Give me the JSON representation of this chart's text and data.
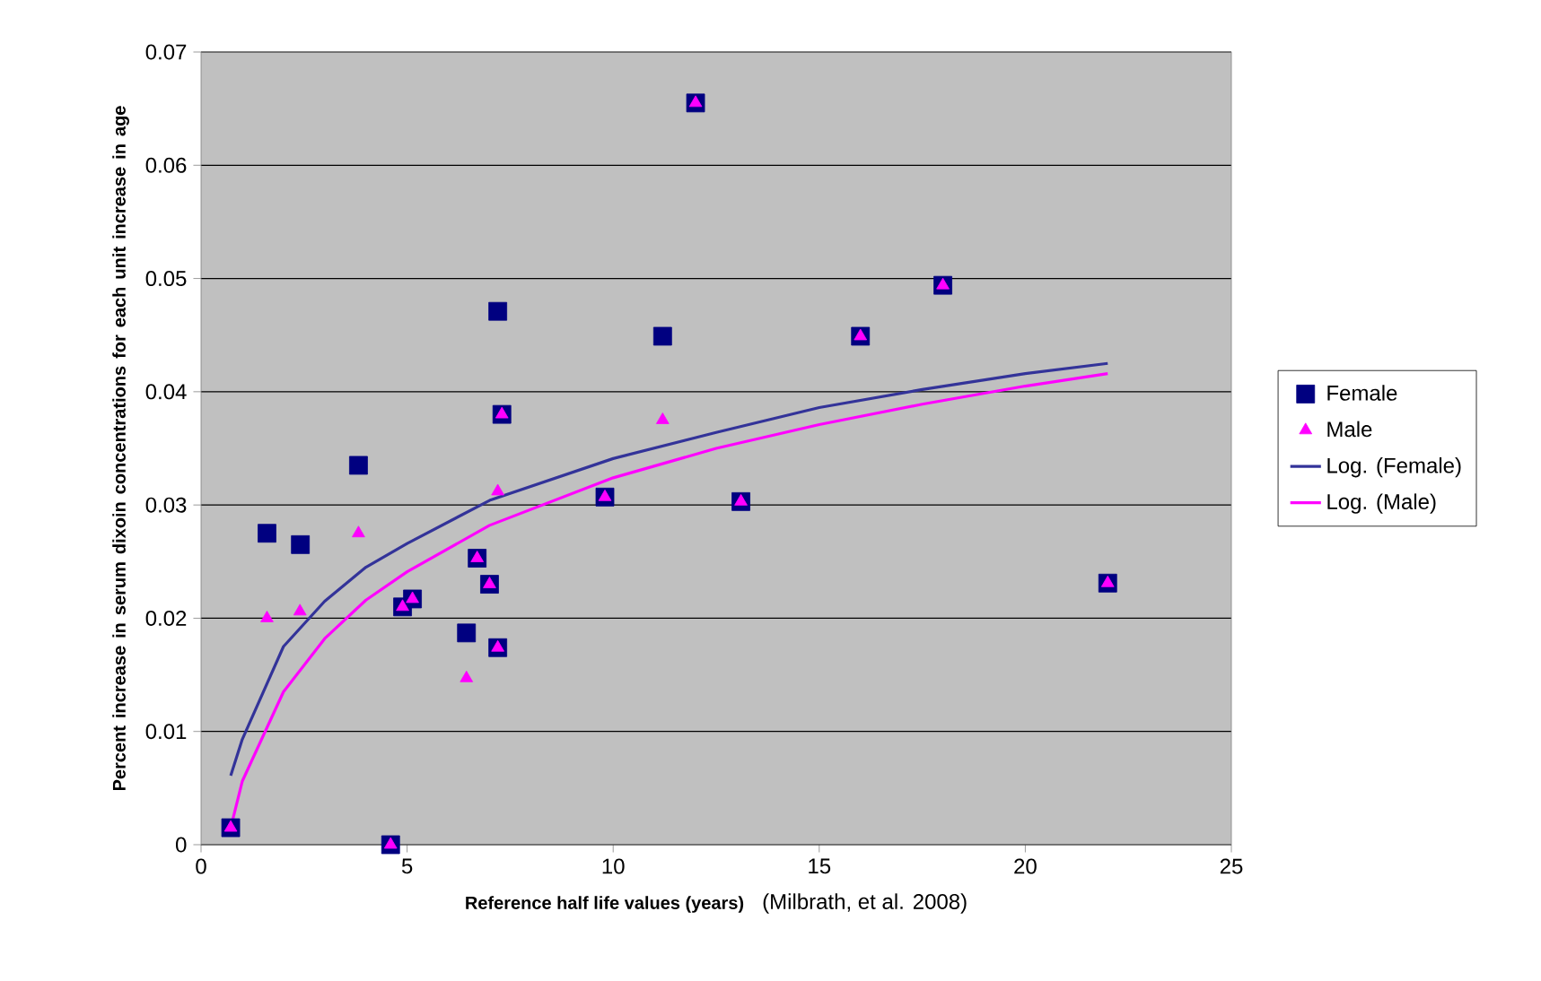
{
  "chart_data": {
    "type": "scatter",
    "xlabel": "Reference half life values (years)",
    "ylabel": "Percent increase in serum dixoin concentrations for each unit increase in age",
    "annotations": [
      "(Milbrath, et al. 2008)"
    ],
    "xlim": [
      0,
      25
    ],
    "xticks": [
      0,
      5,
      10,
      15,
      20,
      25
    ],
    "ylim": [
      0,
      0.07
    ],
    "yticks": [
      0,
      0.01,
      0.02,
      0.03,
      0.04,
      0.05,
      0.06,
      0.07
    ],
    "grid": "y",
    "legend": "right",
    "series": [
      {
        "name": "Female",
        "marker": "square",
        "color": "#000080",
        "x": [
          0.72,
          1.6,
          2.41,
          3.82,
          4.6,
          4.89,
          5.13,
          6.44,
          6.7,
          7.0,
          7.2,
          7.2,
          7.3,
          9.8,
          11.2,
          12.0,
          13.1,
          16.0,
          18.0,
          22.0
        ],
        "values": [
          0.0015,
          0.0275,
          0.0265,
          0.0335,
          0,
          0.021,
          0.0217,
          0.0187,
          0.0253,
          0.023,
          0.0471,
          0.0174,
          0.038,
          0.0307,
          0.0449,
          0.0655,
          0.0303,
          0.0449,
          0.0494,
          0.0231
        ]
      },
      {
        "name": "Male",
        "marker": "triangle",
        "color": "#ff00ff",
        "x": [
          0.72,
          1.6,
          2.4,
          3.82,
          4.6,
          4.89,
          5.13,
          6.44,
          6.7,
          7.0,
          7.2,
          7.2,
          7.3,
          9.8,
          11.2,
          12.0,
          13.1,
          16.0,
          18.0,
          22.0
        ],
        "values": [
          0.0015,
          0.02,
          0.0206,
          0.0275,
          0,
          0.021,
          0.0217,
          0.0147,
          0.0253,
          0.023,
          0.0312,
          0.0174,
          0.038,
          0.0307,
          0.0375,
          0.0655,
          0.0303,
          0.0449,
          0.0494,
          0.0231
        ]
      },
      {
        "name": "Log. (Female)",
        "type": "line",
        "marker": "none",
        "color": "#333399",
        "x": [
          0.72,
          1,
          2,
          3,
          4,
          5,
          7,
          10,
          12.5,
          15,
          17.5,
          20,
          22
        ],
        "values": [
          0.0061,
          0.0093,
          0.0175,
          0.0215,
          0.0245,
          0.0266,
          0.0304,
          0.0341,
          0.0364,
          0.0386,
          0.0402,
          0.0416,
          0.0425
        ]
      },
      {
        "name": "Log. (Male)",
        "type": "line",
        "marker": "none",
        "color": "#ff00ff",
        "x": [
          0.72,
          1,
          2,
          3,
          4,
          5,
          7,
          10,
          12.5,
          15,
          17.5,
          20,
          22
        ],
        "values": [
          0.0015,
          0.0056,
          0.0135,
          0.0182,
          0.0216,
          0.0241,
          0.0282,
          0.0324,
          0.035,
          0.0371,
          0.0389,
          0.0405,
          0.0416
        ]
      }
    ]
  }
}
